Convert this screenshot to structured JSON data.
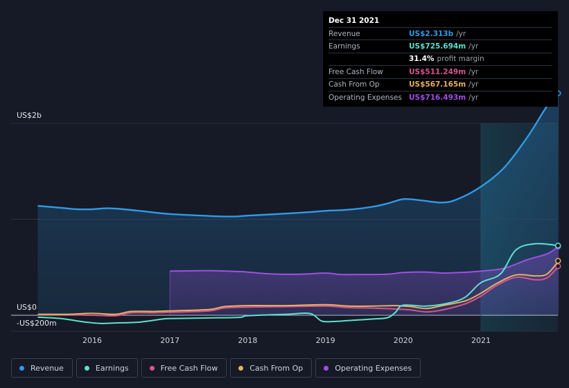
{
  "tooltip": {
    "date": "Dec 31 2021",
    "rows": [
      {
        "label": "Revenue",
        "value": "US$2.313b",
        "unit": "/yr",
        "color": "#2f9be8"
      },
      {
        "label": "Earnings",
        "value": "US$725.694m",
        "unit": "/yr",
        "color": "#5ee1cf"
      },
      {
        "label": "",
        "value": "31.4%",
        "unit": "profit margin",
        "color": "#ffffff"
      },
      {
        "label": "Free Cash Flow",
        "value": "US$511.249m",
        "unit": "/yr",
        "color": "#d6568b"
      },
      {
        "label": "Cash From Op",
        "value": "US$567.165m",
        "unit": "/yr",
        "color": "#e8b062"
      },
      {
        "label": "Operating Expenses",
        "value": "US$716.493m",
        "unit": "/yr",
        "color": "#a24ee6"
      }
    ]
  },
  "legend": [
    {
      "label": "Revenue",
      "color": "#2f9be8"
    },
    {
      "label": "Earnings",
      "color": "#5ee1cf"
    },
    {
      "label": "Free Cash Flow",
      "color": "#d6568b"
    },
    {
      "label": "Cash From Op",
      "color": "#e8b062"
    },
    {
      "label": "Operating Expenses",
      "color": "#a24ee6"
    }
  ],
  "chart_data": {
    "type": "line",
    "title": "",
    "unit": "US$ m",
    "ylim": [
      -200,
      2400
    ],
    "y_tick_labels": [
      {
        "value": 2000,
        "label": "US$2b"
      },
      {
        "value": 0,
        "label": "US$0"
      },
      {
        "value": -200,
        "label": "-US$200m"
      }
    ],
    "x_tick_labels": [
      "2016",
      "2017",
      "2018",
      "2019",
      "2020",
      "2021"
    ],
    "x_ticks": [
      2016,
      2017,
      2018,
      2019,
      2020,
      2021
    ],
    "xlim": [
      2015.0,
      2022.0
    ],
    "highlight_from": 2021.0,
    "series": [
      {
        "name": "Revenue",
        "color": "#2f9be8",
        "fill": true,
        "points": [
          [
            2015.3,
            1140
          ],
          [
            2015.6,
            1120
          ],
          [
            2015.8,
            1105
          ],
          [
            2016.0,
            1105
          ],
          [
            2016.2,
            1115
          ],
          [
            2016.4,
            1105
          ],
          [
            2016.7,
            1080
          ],
          [
            2017.0,
            1055
          ],
          [
            2017.5,
            1035
          ],
          [
            2017.8,
            1028
          ],
          [
            2018.0,
            1038
          ],
          [
            2018.5,
            1060
          ],
          [
            2018.8,
            1075
          ],
          [
            2019.0,
            1088
          ],
          [
            2019.3,
            1100
          ],
          [
            2019.6,
            1130
          ],
          [
            2019.8,
            1165
          ],
          [
            2020.0,
            1210
          ],
          [
            2020.2,
            1200
          ],
          [
            2020.5,
            1175
          ],
          [
            2020.7,
            1210
          ],
          [
            2021.0,
            1340
          ],
          [
            2021.3,
            1540
          ],
          [
            2021.6,
            1860
          ],
          [
            2021.85,
            2180
          ],
          [
            2022.0,
            2313
          ]
        ]
      },
      {
        "name": "Earnings",
        "color": "#5ee1cf",
        "fill": false,
        "points": [
          [
            2015.3,
            -20
          ],
          [
            2015.6,
            -35
          ],
          [
            2015.9,
            -70
          ],
          [
            2016.1,
            -85
          ],
          [
            2016.3,
            -80
          ],
          [
            2016.6,
            -72
          ],
          [
            2016.9,
            -40
          ],
          [
            2017.0,
            -35
          ],
          [
            2017.5,
            -28
          ],
          [
            2017.9,
            -22
          ],
          [
            2018.0,
            -5
          ],
          [
            2018.5,
            10
          ],
          [
            2018.8,
            18
          ],
          [
            2018.95,
            -60
          ],
          [
            2019.1,
            -65
          ],
          [
            2019.3,
            -55
          ],
          [
            2019.6,
            -40
          ],
          [
            2019.8,
            -25
          ],
          [
            2019.9,
            30
          ],
          [
            2020.0,
            105
          ],
          [
            2020.3,
            95
          ],
          [
            2020.6,
            130
          ],
          [
            2020.8,
            190
          ],
          [
            2021.0,
            340
          ],
          [
            2021.25,
            430
          ],
          [
            2021.45,
            680
          ],
          [
            2021.7,
            745
          ],
          [
            2022.0,
            726
          ]
        ]
      },
      {
        "name": "Free Cash Flow",
        "color": "#d6568b",
        "fill": false,
        "points": [
          [
            2015.3,
            5
          ],
          [
            2015.7,
            5
          ],
          [
            2016.0,
            0
          ],
          [
            2016.3,
            -5
          ],
          [
            2016.5,
            25
          ],
          [
            2016.8,
            25
          ],
          [
            2017.0,
            30
          ],
          [
            2017.5,
            45
          ],
          [
            2017.7,
            75
          ],
          [
            2018.0,
            85
          ],
          [
            2018.5,
            90
          ],
          [
            2019.0,
            95
          ],
          [
            2019.3,
            80
          ],
          [
            2019.6,
            75
          ],
          [
            2019.9,
            65
          ],
          [
            2020.1,
            55
          ],
          [
            2020.3,
            35
          ],
          [
            2020.5,
            55
          ],
          [
            2020.8,
            120
          ],
          [
            2021.0,
            200
          ],
          [
            2021.2,
            310
          ],
          [
            2021.45,
            395
          ],
          [
            2021.7,
            370
          ],
          [
            2021.85,
            390
          ],
          [
            2022.0,
            511
          ]
        ]
      },
      {
        "name": "Cash From Op",
        "color": "#e8b062",
        "fill": false,
        "points": [
          [
            2015.3,
            10
          ],
          [
            2015.7,
            10
          ],
          [
            2016.0,
            20
          ],
          [
            2016.3,
            10
          ],
          [
            2016.5,
            40
          ],
          [
            2016.8,
            40
          ],
          [
            2017.0,
            45
          ],
          [
            2017.5,
            60
          ],
          [
            2017.7,
            90
          ],
          [
            2018.0,
            100
          ],
          [
            2018.5,
            100
          ],
          [
            2019.0,
            110
          ],
          [
            2019.3,
            95
          ],
          [
            2019.6,
            95
          ],
          [
            2019.9,
            100
          ],
          [
            2020.1,
            90
          ],
          [
            2020.3,
            70
          ],
          [
            2020.5,
            100
          ],
          [
            2020.8,
            150
          ],
          [
            2021.0,
            230
          ],
          [
            2021.2,
            330
          ],
          [
            2021.45,
            420
          ],
          [
            2021.7,
            410
          ],
          [
            2021.85,
            430
          ],
          [
            2022.0,
            567
          ]
        ]
      },
      {
        "name": "Operating Expenses",
        "color": "#a24ee6",
        "fill": true,
        "start_bar": 2017.0,
        "points": [
          [
            2017.0,
            460
          ],
          [
            2017.5,
            465
          ],
          [
            2017.9,
            455
          ],
          [
            2018.0,
            450
          ],
          [
            2018.3,
            430
          ],
          [
            2018.7,
            428
          ],
          [
            2019.0,
            440
          ],
          [
            2019.2,
            425
          ],
          [
            2019.5,
            425
          ],
          [
            2019.8,
            428
          ],
          [
            2020.0,
            445
          ],
          [
            2020.3,
            450
          ],
          [
            2020.5,
            440
          ],
          [
            2020.8,
            448
          ],
          [
            2021.0,
            460
          ],
          [
            2021.3,
            490
          ],
          [
            2021.6,
            580
          ],
          [
            2021.85,
            640
          ],
          [
            2022.0,
            716
          ]
        ]
      }
    ]
  }
}
